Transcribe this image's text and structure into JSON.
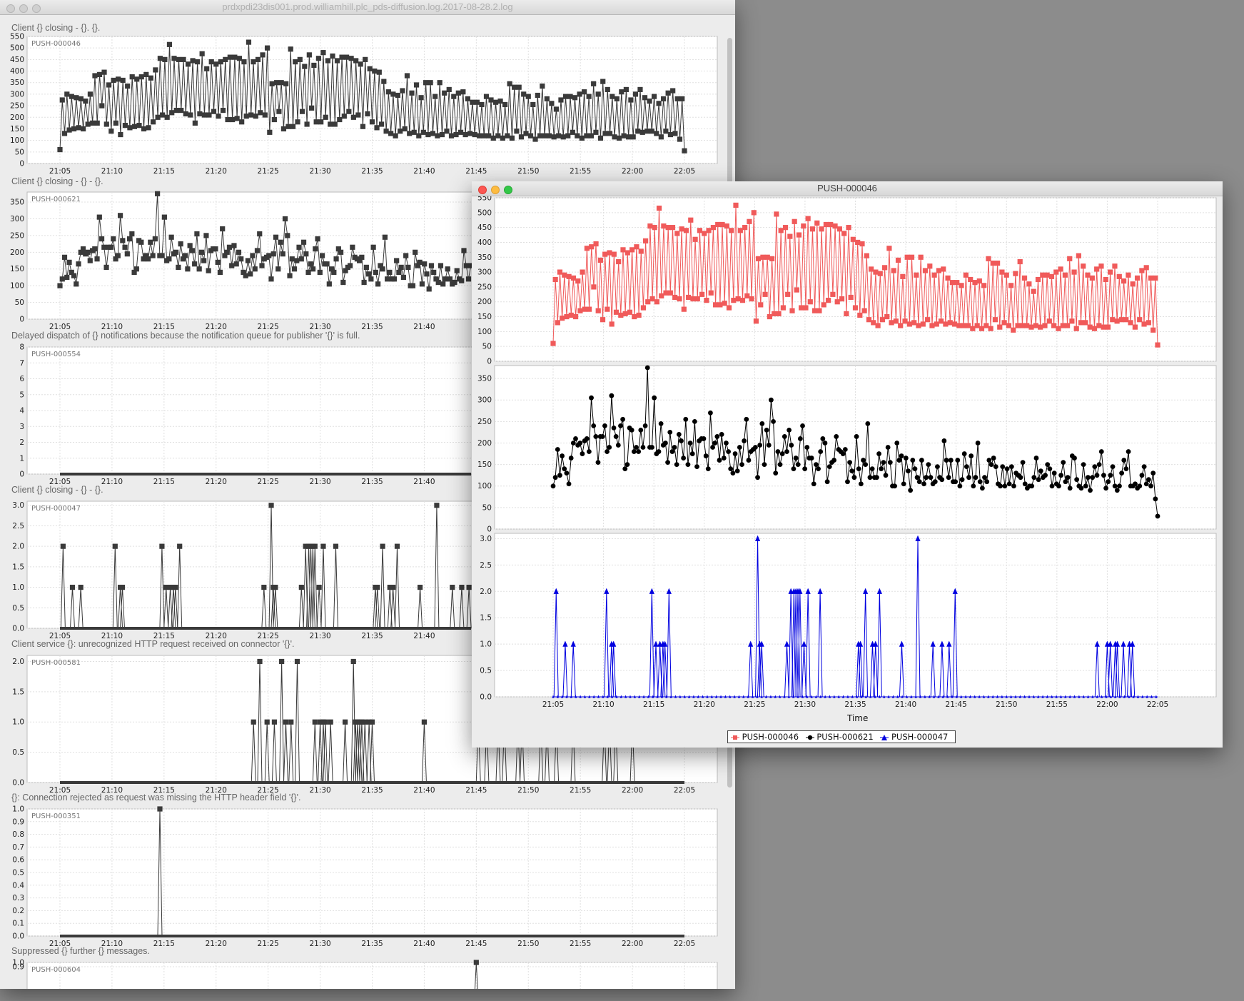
{
  "window1": {
    "title": "prdxpdi23dis001.prod.williamhill.plc_pds-diffusion.log.2017-08-28.2.log",
    "charts": [
      {
        "message": "Client {} closing - {}. {}.",
        "series": "PUSH-000046"
      },
      {
        "message": "Client {} closing - {} - {}.",
        "series": "PUSH-000621"
      },
      {
        "message": "Delayed dispatch of {} notifications because the notification queue for publisher '{}' is full.",
        "series": "PUSH-000554"
      },
      {
        "message": "Client {} closing - {} - {}.",
        "series": "PUSH-000047"
      },
      {
        "message": "Client service {}: unrecognized HTTP request received on connector '{}'.",
        "series": "PUSH-000581"
      },
      {
        "message": "{}: Connection rejected as request was missing the HTTP header field '{}'.",
        "series": "PUSH-000351"
      },
      {
        "message": "Suppressed {} further {} messages.",
        "series": "PUSH-000604"
      }
    ]
  },
  "window2": {
    "title": "PUSH-000046",
    "xlabel": "Time",
    "legend": [
      {
        "label": "PUSH-000046",
        "color": "#f05a5a",
        "marker": "square"
      },
      {
        "label": "PUSH-000621",
        "color": "#000000",
        "marker": "circle"
      },
      {
        "label": "PUSH-000047",
        "color": "#0000e0",
        "marker": "triangle"
      }
    ]
  },
  "x_ticks": [
    "21:05",
    "21:10",
    "21:15",
    "21:20",
    "21:25",
    "21:30",
    "21:35",
    "21:40",
    "21:45",
    "21:50",
    "21:55",
    "22:00",
    "22:05"
  ],
  "chart_data": [
    {
      "type": "line",
      "id": "c046",
      "series": [
        {
          "name": "PUSH-000046"
        }
      ],
      "x_range": [
        "21:05",
        "22:05"
      ],
      "ylim": [
        0,
        550
      ],
      "y_ticks": [
        0,
        50,
        100,
        150,
        200,
        250,
        300,
        350,
        400,
        450,
        500,
        550
      ],
      "values": [
        60,
        275,
        130,
        300,
        145,
        290,
        150,
        285,
        155,
        280,
        150,
        270,
        170,
        300,
        175,
        380,
        175,
        385,
        250,
        395,
        170,
        340,
        140,
        360,
        175,
        365,
        125,
        360,
        165,
        335,
        155,
        375,
        160,
        365,
        165,
        375,
        150,
        385,
        155,
        370,
        180,
        405,
        200,
        455,
        210,
        450,
        200,
        515,
        220,
        455,
        230,
        450,
        230,
        450,
        215,
        430,
        210,
        445,
        175,
        440,
        215,
        475,
        210,
        410,
        210,
        440,
        225,
        430,
        205,
        440,
        230,
        450,
        190,
        460,
        190,
        460,
        195,
        455,
        180,
        440,
        205,
        525,
        210,
        440,
        205,
        450,
        220,
        470,
        210,
        500,
        135,
        345,
        190,
        350,
        225,
        350,
        150,
        345,
        160,
        495,
        160,
        440,
        180,
        450,
        225,
        420,
        170,
        470,
        240,
        425,
        180,
        455,
        180,
        480,
        200,
        445,
        170,
        465,
        170,
        445,
        190,
        460,
        205,
        460,
        225,
        455,
        200,
        445,
        210,
        430,
        160,
        450,
        215,
        410,
        180,
        400,
        155,
        395,
        170,
        355,
        140,
        310,
        130,
        300,
        120,
        295,
        140,
        315,
        150,
        380,
        130,
        305,
        135,
        340,
        120,
        285,
        135,
        350,
        125,
        350,
        130,
        290,
        120,
        350,
        125,
        305,
        140,
        320,
        120,
        290,
        125,
        305,
        135,
        310,
        125,
        280,
        130,
        265,
        125,
        265,
        120,
        255,
        120,
        290,
        120,
        275,
        110,
        265,
        120,
        270,
        110,
        255,
        120,
        345,
        110,
        330,
        140,
        330,
        115,
        300,
        130,
        290,
        120,
        255,
        105,
        295,
        120,
        335,
        120,
        280,
        120,
        260,
        115,
        235,
        120,
        275,
        115,
        290,
        120,
        290,
        135,
        285,
        120,
        300,
        110,
        310,
        120,
        290,
        120,
        345,
        135,
        300,
        110,
        355,
        130,
        320,
        130,
        290,
        115,
        280,
        110,
        310,
        120,
        320,
        115,
        275,
        115,
        300,
        140,
        320,
        135,
        285,
        140,
        270,
        140,
        290,
        130,
        260,
        115,
        280,
        140,
        305,
        125,
        315,
        130,
        280,
        105,
        280,
        55
      ]
    },
    {
      "type": "line",
      "id": "c621",
      "series": [
        {
          "name": "PUSH-000621"
        }
      ],
      "x_range": [
        "21:05",
        "22:05"
      ],
      "ylim": [
        0,
        380
      ],
      "y_ticks": [
        0,
        50,
        100,
        150,
        200,
        250,
        300,
        350
      ],
      "values": [
        100,
        120,
        185,
        125,
        170,
        140,
        130,
        105,
        165,
        200,
        210,
        195,
        200,
        175,
        205,
        210,
        180,
        305,
        240,
        215,
        155,
        215,
        215,
        240,
        180,
        190,
        310,
        235,
        215,
        195,
        240,
        255,
        140,
        150,
        235,
        230,
        180,
        190,
        180,
        230,
        190,
        240,
        375,
        190,
        190,
        305,
        175,
        180,
        245,
        195,
        200,
        155,
        225,
        180,
        190,
        150,
        220,
        205,
        165,
        255,
        150,
        200,
        175,
        250,
        145,
        205,
        210,
        210,
        170,
        140,
        270,
        190,
        200,
        215,
        160,
        220,
        165,
        200,
        180,
        140,
        130,
        175,
        135,
        190,
        150,
        205,
        255,
        160,
        180,
        185,
        190,
        120,
        195,
        245,
        150,
        230,
        195,
        300,
        250,
        130,
        180,
        150,
        175,
        215,
        180,
        230,
        195,
        140,
        165,
        150,
        210,
        240,
        140,
        190,
        165,
        165,
        105,
        150,
        140,
        180,
        210,
        200,
        110,
        145,
        155,
        160,
        215,
        185,
        180,
        175,
        185,
        110,
        155,
        135,
        120,
        215,
        140,
        105,
        160,
        150,
        245,
        120,
        140,
        120,
        120,
        175,
        140,
        155,
        125,
        190,
        155,
        100,
        100,
        200,
        160,
        170,
        105,
        165,
        135,
        90,
        160,
        140,
        120,
        110,
        160,
        105,
        120,
        150,
        120,
        105,
        110,
        145,
        120,
        115,
        205,
        160,
        120,
        160,
        110,
        110,
        160,
        100,
        115,
        175,
        145,
        120,
        170,
        100,
        120,
        200,
        110,
        95,
        120,
        110,
        160,
        150,
        165,
        145,
        105,
        100,
        145,
        100,
        140,
        105,
        145,
        100,
        130,
        125,
        120,
        155,
        105,
        95,
        100,
        100,
        120,
        165,
        115,
        135,
        120,
        125,
        150,
        140,
        100,
        130,
        105,
        100,
        125,
        155,
        110,
        120,
        95,
        170,
        165,
        115,
        100,
        95,
        150,
        100,
        120,
        90,
        120,
        145,
        125,
        150,
        180,
        125,
        95,
        110,
        125,
        145,
        100,
        90,
        100,
        130,
        160,
        140,
        180,
        100,
        100,
        105,
        95,
        100,
        125,
        145,
        105,
        115,
        100,
        130,
        70,
        30
      ]
    },
    {
      "type": "line",
      "id": "c047",
      "series": [
        {
          "name": "PUSH-000047"
        }
      ],
      "x_range": [
        "21:05",
        "22:05"
      ],
      "ylim": [
        0,
        3.1
      ],
      "y_ticks": [
        0.0,
        0.5,
        1.0,
        1.5,
        2.0,
        2.5,
        3.0
      ],
      "spikes": [
        [
          0.3,
          2
        ],
        [
          1.2,
          1
        ],
        [
          2.0,
          1
        ],
        [
          5.3,
          2
        ],
        [
          5.8,
          1
        ],
        [
          6.0,
          1
        ],
        [
          9.8,
          2
        ],
        [
          10.2,
          1
        ],
        [
          10.6,
          1
        ],
        [
          10.9,
          1
        ],
        [
          11.1,
          1
        ],
        [
          11.5,
          2
        ],
        [
          19.6,
          1
        ],
        [
          20.3,
          3
        ],
        [
          20.5,
          1
        ],
        [
          20.7,
          1
        ],
        [
          23.2,
          1
        ],
        [
          23.6,
          2
        ],
        [
          23.9,
          2
        ],
        [
          24.1,
          2
        ],
        [
          24.3,
          2
        ],
        [
          24.5,
          2
        ],
        [
          24.9,
          1
        ],
        [
          25.3,
          2
        ],
        [
          26.5,
          2
        ],
        [
          30.3,
          1
        ],
        [
          30.5,
          1
        ],
        [
          31.0,
          2
        ],
        [
          31.7,
          1
        ],
        [
          32.0,
          1
        ],
        [
          32.4,
          2
        ],
        [
          34.6,
          1
        ],
        [
          36.2,
          3
        ],
        [
          37.7,
          1
        ],
        [
          38.6,
          1
        ],
        [
          39.3,
          1
        ],
        [
          39.9,
          2
        ],
        [
          54.0,
          1
        ],
        [
          55.0,
          1
        ],
        [
          55.3,
          1
        ],
        [
          55.8,
          1
        ],
        [
          56.0,
          1
        ],
        [
          56.6,
          1
        ],
        [
          57.2,
          1
        ],
        [
          57.5,
          1
        ]
      ]
    },
    {
      "type": "line",
      "id": "c554",
      "series": [
        {
          "name": "PUSH-000554"
        }
      ],
      "x_range": [
        "21:05",
        "22:05"
      ],
      "ylim": [
        0,
        8
      ],
      "y_ticks": [
        0,
        1,
        2,
        3,
        4,
        5,
        6,
        7,
        8
      ],
      "spikes": []
    },
    {
      "type": "line",
      "id": "c581",
      "series": [
        {
          "name": "PUSH-000581"
        }
      ],
      "x_range": [
        "21:05",
        "22:05"
      ],
      "ylim": [
        0,
        2.1
      ],
      "y_ticks": [
        0.0,
        0.5,
        1.0,
        1.5,
        2.0
      ],
      "spikes": [
        [
          18.6,
          1
        ],
        [
          19.2,
          2
        ],
        [
          19.9,
          1
        ],
        [
          20.6,
          1
        ],
        [
          21.3,
          2
        ],
        [
          21.7,
          1
        ],
        [
          22.2,
          1
        ],
        [
          22.8,
          2
        ],
        [
          24.5,
          1
        ],
        [
          25.0,
          1
        ],
        [
          25.3,
          1
        ],
        [
          25.5,
          1
        ],
        [
          26.0,
          1
        ],
        [
          27.4,
          1
        ],
        [
          28.2,
          2
        ],
        [
          28.4,
          1
        ],
        [
          28.6,
          1
        ],
        [
          28.8,
          1
        ],
        [
          29.0,
          1
        ],
        [
          29.3,
          1
        ],
        [
          29.7,
          1
        ],
        [
          30.0,
          1
        ],
        [
          35.0,
          1
        ],
        [
          40.2,
          1
        ],
        [
          41.0,
          1
        ],
        [
          42.1,
          1
        ],
        [
          42.7,
          1
        ],
        [
          44.0,
          1
        ],
        [
          44.4,
          1
        ],
        [
          46.2,
          1
        ],
        [
          46.8,
          1
        ],
        [
          47.7,
          1
        ],
        [
          49.3,
          1
        ],
        [
          52.3,
          1
        ],
        [
          52.8,
          1
        ],
        [
          53.4,
          1
        ],
        [
          55.0,
          1
        ]
      ]
    },
    {
      "type": "line",
      "id": "c351",
      "series": [
        {
          "name": "PUSH-000351"
        }
      ],
      "x_range": [
        "21:05",
        "22:05"
      ],
      "ylim": [
        0,
        1.0
      ],
      "y_ticks": [
        0.0,
        0.1,
        0.2,
        0.3,
        0.4,
        0.5,
        0.6,
        0.7,
        0.8,
        0.9,
        1.0
      ],
      "spikes": [
        [
          9.6,
          1
        ]
      ]
    },
    {
      "type": "line",
      "id": "c604",
      "series": [
        {
          "name": "PUSH-000604"
        }
      ],
      "x_range": [
        "21:05",
        "22:05"
      ],
      "ylim": [
        0,
        1.0
      ],
      "y_ticks": [
        0.9,
        1.0
      ],
      "spikes": [
        [
          40.0,
          1
        ]
      ]
    }
  ]
}
